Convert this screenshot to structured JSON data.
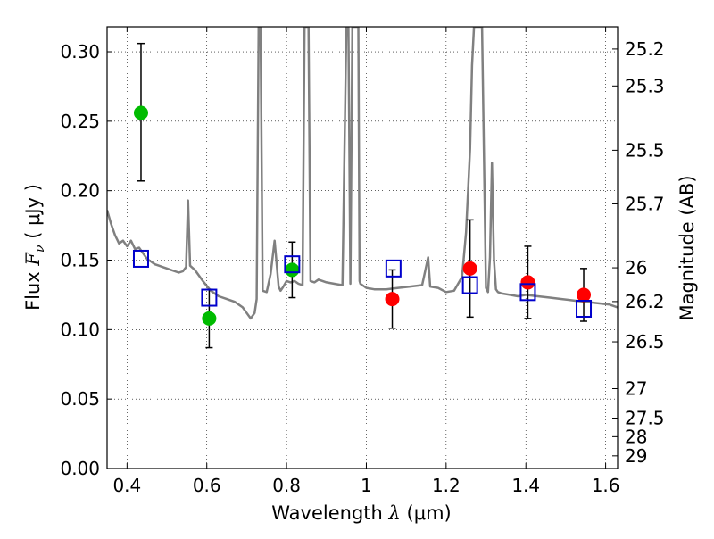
{
  "chart_data": {
    "type": "scatter",
    "xlabel": "Wavelength",
    "xlabel_symbol": "λ",
    "xlabel_unit": "(μm)",
    "ylabel": "Flux",
    "ylabel_symbol": "F",
    "ylabel_subscript": "ν",
    "ylabel_unit": "( μJy )",
    "y2label": "Magnitude (AB)",
    "xlim": [
      0.35,
      1.63
    ],
    "ylim": [
      0.0,
      0.318
    ],
    "grid": true,
    "x_ticks": [
      0.4,
      0.6,
      0.8,
      1.0,
      1.2,
      1.4,
      1.6
    ],
    "x_tick_labels": [
      "0.4",
      "0.6",
      "0.8",
      "1",
      "1.2",
      "1.4",
      "1.6"
    ],
    "y_ticks": [
      0.0,
      0.05,
      0.1,
      0.15,
      0.2,
      0.25,
      0.3
    ],
    "y_tick_labels": [
      "0.00",
      "0.05",
      "0.10",
      "0.15",
      "0.20",
      "0.25",
      "0.30"
    ],
    "y2_ticks": [
      {
        "label": "25.2",
        "flux": 0.302
      },
      {
        "label": "25.3",
        "flux": 0.2754
      },
      {
        "label": "25.5",
        "flux": 0.2291
      },
      {
        "label": "25.7",
        "flux": 0.1905
      },
      {
        "label": "26",
        "flux": 0.1445
      },
      {
        "label": "26.2",
        "flux": 0.1202
      },
      {
        "label": "26.5",
        "flux": 0.0912
      },
      {
        "label": "27",
        "flux": 0.0575
      },
      {
        "label": "27.5",
        "flux": 0.0363
      },
      {
        "label": "28",
        "flux": 0.0229
      },
      {
        "label": "29",
        "flux": 0.0091
      }
    ],
    "series": [
      {
        "marker": "circle",
        "color": "#00bb00",
        "label_side": "green",
        "points": [
          {
            "x": 0.435,
            "y": 0.256,
            "err_low": 0.049,
            "err_high": 0.05
          },
          {
            "x": 0.606,
            "y": 0.108,
            "err_low": 0.021,
            "err_high": 0.021
          },
          {
            "x": 0.814,
            "y": 0.143,
            "err_low": 0.02,
            "err_high": 0.02
          }
        ]
      },
      {
        "marker": "circle",
        "color": "#ff0000",
        "label_side": "red",
        "points": [
          {
            "x": 1.065,
            "y": 0.122,
            "err_low": 0.021,
            "err_high": 0.021
          },
          {
            "x": 1.26,
            "y": 0.144,
            "err_low": 0.035,
            "err_high": 0.035
          },
          {
            "x": 1.405,
            "y": 0.134,
            "err_low": 0.026,
            "err_high": 0.026
          },
          {
            "x": 1.545,
            "y": 0.125,
            "err_low": 0.019,
            "err_high": 0.019
          }
        ]
      },
      {
        "marker": "open-square",
        "color": "#0000cc",
        "points": [
          {
            "x": 0.435,
            "y": 0.151
          },
          {
            "x": 0.606,
            "y": 0.123
          },
          {
            "x": 0.814,
            "y": 0.147
          },
          {
            "x": 1.068,
            "y": 0.144
          },
          {
            "x": 1.26,
            "y": 0.132
          },
          {
            "x": 1.405,
            "y": 0.127
          },
          {
            "x": 1.545,
            "y": 0.115
          }
        ]
      }
    ],
    "model_spectrum": {
      "color": "#808080",
      "x": [
        0.35,
        0.36,
        0.37,
        0.38,
        0.39,
        0.4,
        0.41,
        0.42,
        0.43,
        0.44,
        0.45,
        0.46,
        0.47,
        0.48,
        0.49,
        0.5,
        0.51,
        0.52,
        0.53,
        0.54,
        0.548,
        0.553,
        0.558,
        0.57,
        0.59,
        0.61,
        0.63,
        0.65,
        0.67,
        0.69,
        0.7,
        0.71,
        0.72,
        0.725,
        0.73,
        0.732,
        0.735,
        0.74,
        0.75,
        0.76,
        0.77,
        0.78,
        0.785,
        0.79,
        0.8,
        0.81,
        0.82,
        0.83,
        0.84,
        0.845,
        0.85,
        0.855,
        0.86,
        0.87,
        0.88,
        0.9,
        0.92,
        0.94,
        0.95,
        0.955,
        0.96,
        0.965,
        0.97,
        0.972,
        0.975,
        0.977,
        0.98,
        0.983,
        0.985,
        0.99,
        1.0,
        1.02,
        1.05,
        1.08,
        1.11,
        1.14,
        1.155,
        1.16,
        1.18,
        1.2,
        1.22,
        1.24,
        1.25,
        1.26,
        1.265,
        1.27,
        1.28,
        1.29,
        1.3,
        1.305,
        1.31,
        1.315,
        1.32,
        1.325,
        1.33,
        1.34,
        1.36,
        1.38,
        1.4,
        1.43,
        1.46,
        1.49,
        1.52,
        1.55,
        1.58,
        1.61,
        1.63
      ],
      "y": [
        0.186,
        0.176,
        0.168,
        0.162,
        0.164,
        0.16,
        0.164,
        0.158,
        0.159,
        0.155,
        0.151,
        0.149,
        0.147,
        0.146,
        0.145,
        0.144,
        0.143,
        0.142,
        0.141,
        0.142,
        0.145,
        0.193,
        0.146,
        0.143,
        0.135,
        0.128,
        0.124,
        0.122,
        0.12,
        0.116,
        0.112,
        0.108,
        0.112,
        0.122,
        0.318,
        0.318,
        0.318,
        0.128,
        0.127,
        0.14,
        0.164,
        0.131,
        0.128,
        0.13,
        0.135,
        0.134,
        0.135,
        0.133,
        0.132,
        0.318,
        0.318,
        0.318,
        0.135,
        0.134,
        0.136,
        0.134,
        0.133,
        0.132,
        0.318,
        0.318,
        0.133,
        0.318,
        0.318,
        0.318,
        0.318,
        0.318,
        0.318,
        0.135,
        0.133,
        0.132,
        0.13,
        0.129,
        0.129,
        0.13,
        0.131,
        0.132,
        0.152,
        0.131,
        0.13,
        0.127,
        0.128,
        0.138,
        0.17,
        0.23,
        0.29,
        0.318,
        0.318,
        0.318,
        0.13,
        0.127,
        0.152,
        0.22,
        0.15,
        0.129,
        0.127,
        0.126,
        0.125,
        0.124,
        0.125,
        0.124,
        0.123,
        0.122,
        0.121,
        0.12,
        0.119,
        0.118,
        0.116
      ]
    }
  }
}
